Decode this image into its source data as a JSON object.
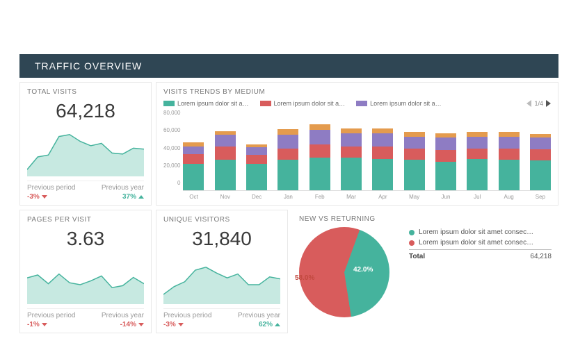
{
  "palette": {
    "header_bg": "#2f4654",
    "teal": "#45b39d",
    "teal_fill": "#b9e3da",
    "red": "#d85c5c",
    "purple": "#8e7cc3",
    "orange": "#e49b4e",
    "grid": "#e8e8e8",
    "text_muted": "#999999"
  },
  "header": {
    "title": "TRAFFIC OVERVIEW"
  },
  "total_visits": {
    "title": "TOTAL VISITS",
    "value": "64,218",
    "spark": {
      "points": [
        14,
        40,
        44,
        82,
        86,
        72,
        63,
        68,
        48,
        46,
        58,
        56
      ],
      "ymax": 100,
      "stroke": "#45b39d",
      "fill": "#b9e3da"
    },
    "prev_period": {
      "label": "Previous period",
      "delta": "-3%",
      "dir": "down"
    },
    "prev_year": {
      "label": "Previous year",
      "delta": "37%",
      "dir": "up"
    }
  },
  "trends": {
    "title": "VISITS TRENDS BY MEDIUM",
    "legend": [
      {
        "label": "Lorem ipsum dolor sit a…",
        "color": "#45b39d"
      },
      {
        "label": "Lorem ipsum dolor sit a…",
        "color": "#d85c5c"
      },
      {
        "label": "Lorem ipsum dolor sit a…",
        "color": "#8e7cc3"
      }
    ],
    "pager": "1/4",
    "ymax": 80000,
    "yticks": [
      "80,000",
      "60,000",
      "40,000",
      "20,000",
      "0"
    ],
    "months": [
      "Oct",
      "Nov",
      "Dec",
      "Jan",
      "Feb",
      "Mar",
      "Apr",
      "May",
      "Jun",
      "Jul",
      "Aug",
      "Sep"
    ],
    "series_colors": [
      "#45b39d",
      "#d85c5c",
      "#8e7cc3",
      "#e49b4e"
    ],
    "stacks": [
      [
        28000,
        10000,
        8000,
        4000
      ],
      [
        32000,
        14000,
        12000,
        4000
      ],
      [
        28000,
        9000,
        8000,
        3000
      ],
      [
        32000,
        12000,
        14000,
        6000
      ],
      [
        34000,
        14000,
        15000,
        6000
      ],
      [
        34000,
        12000,
        14000,
        5000
      ],
      [
        33000,
        13000,
        14000,
        5000
      ],
      [
        32000,
        12000,
        12000,
        5000
      ],
      [
        30000,
        12000,
        13000,
        5000
      ],
      [
        33000,
        11000,
        12000,
        5000
      ],
      [
        32000,
        12000,
        12000,
        5000
      ],
      [
        31000,
        12000,
        12000,
        4000
      ]
    ]
  },
  "pages_per_visit": {
    "title": "PAGES PER VISIT",
    "value": "3.63",
    "spark": {
      "points": [
        54,
        60,
        42,
        62,
        44,
        40,
        48,
        58,
        34,
        38,
        55,
        42
      ],
      "ymax": 100,
      "stroke": "#45b39d",
      "fill": "#b9e3da"
    },
    "prev_period": {
      "label": "Previous period",
      "delta": "-1%",
      "dir": "down"
    },
    "prev_year": {
      "label": "Previous year",
      "delta": "-14%",
      "dir": "down"
    }
  },
  "unique_visitors": {
    "title": "UNIQUE VISITORS",
    "value": "31,840",
    "spark": {
      "points": [
        20,
        36,
        46,
        70,
        76,
        64,
        54,
        62,
        40,
        40,
        56,
        52
      ],
      "ymax": 100,
      "stroke": "#45b39d",
      "fill": "#b9e3da"
    },
    "prev_period": {
      "label": "Previous period",
      "delta": "-3%",
      "dir": "down"
    },
    "prev_year": {
      "label": "Previous year",
      "delta": "62%",
      "dir": "up"
    }
  },
  "new_vs_returning": {
    "title": "NEW VS RETURNING",
    "total_label": "Total",
    "total_value": "64,218",
    "slices": [
      {
        "label": "Lorem ipsum dolor sit amet consec…",
        "value": 42.0,
        "color": "#45b39d",
        "text": "42.0%"
      },
      {
        "label": "Lorem ipsum dolor sit amet consec…",
        "value": 58.0,
        "color": "#d85c5c",
        "text": "58.0%"
      }
    ]
  }
}
